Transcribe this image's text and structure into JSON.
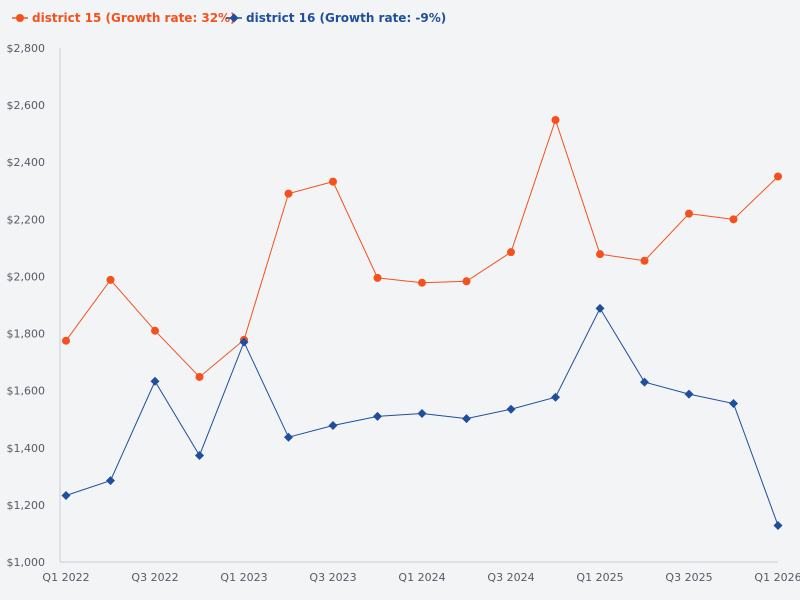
{
  "chart_data": {
    "type": "line",
    "title": "",
    "xlabel": "",
    "ylabel": "",
    "ylim": [
      1000,
      2800
    ],
    "yticks": [
      1000,
      1200,
      1400,
      1600,
      1800,
      2000,
      2200,
      2400,
      2600,
      2800
    ],
    "ytick_labels": [
      "$1,000",
      "$1,200",
      "$1,400",
      "$1,600",
      "$1,800",
      "$2,000",
      "$2,200",
      "$2,400",
      "$2,600",
      "$2,800"
    ],
    "x": [
      "Q1 2022",
      "Q2 2022",
      "Q3 2022",
      "Q4 2022",
      "Q1 2023",
      "Q2 2023",
      "Q3 2023",
      "Q4 2023",
      "Q1 2024",
      "Q2 2024",
      "Q3 2024",
      "Q4 2024",
      "Q1 2025",
      "Q2 2025",
      "Q3 2025",
      "Q4 2025",
      "Q1 2026"
    ],
    "xtick_labels": [
      "Q1 2022",
      "Q3 2022",
      "Q1 2023",
      "Q3 2023",
      "Q1 2024",
      "Q3 2024",
      "Q1 2025",
      "Q3 2025",
      "Q1 2026"
    ],
    "legend_position": "top-left",
    "series": [
      {
        "name": "district 15 (Growth rate: 32%)",
        "color": "#f4511e",
        "marker": "circle",
        "values": [
          1775,
          1988,
          1810,
          1648,
          1778,
          2290,
          2332,
          1995,
          1978,
          1983,
          2085,
          2548,
          2078,
          2055,
          2220,
          2200,
          2350
        ]
      },
      {
        "name": "district 16 (Growth rate: -9%)",
        "color": "#1f4e9c",
        "marker": "diamond",
        "values": [
          1233,
          1285,
          1633,
          1373,
          1770,
          1437,
          1478,
          1510,
          1520,
          1502,
          1535,
          1577,
          1888,
          1630,
          1588,
          1555,
          1128
        ]
      }
    ]
  },
  "colors": {
    "background": "#f3f4f6",
    "axis": "#c9ccd2",
    "tick_text": "#555b66"
  }
}
